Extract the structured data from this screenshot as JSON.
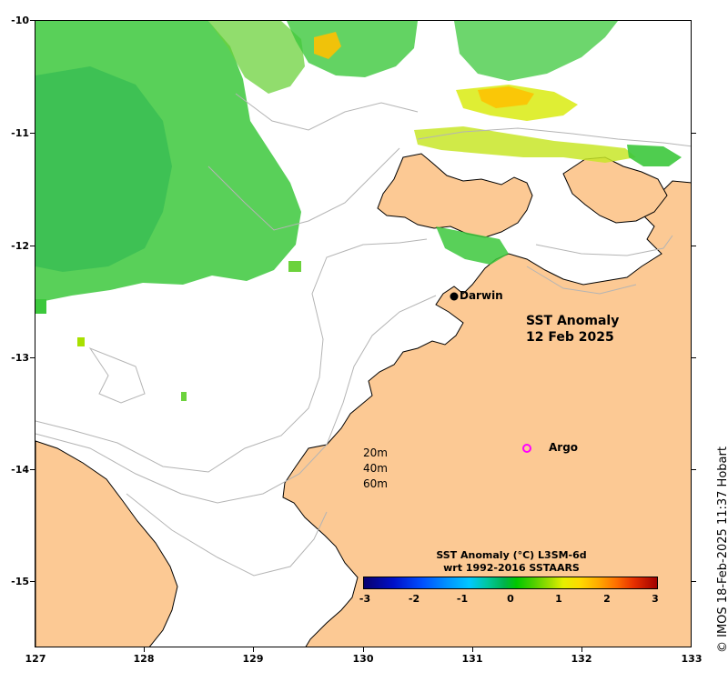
{
  "map": {
    "title_line1": "SST Anomaly",
    "title_line2": "12 Feb 2025",
    "y_ticks": [
      "-10",
      "-11",
      "-12",
      "-13",
      "-14",
      "-15"
    ],
    "x_ticks": [
      "127",
      "128",
      "129",
      "130",
      "131",
      "132",
      "133"
    ],
    "places": {
      "darwin": "Darwin",
      "argo": "Argo"
    },
    "contour_legend": [
      "20m",
      "40m",
      "60m"
    ],
    "colorbar": {
      "title_line1": "SST Anomaly (°C) L3SM-6d",
      "title_line2": "wrt 1992-2016 SSTAARS",
      "ticks": [
        "-3",
        "-2",
        "-1",
        "0",
        "1",
        "2",
        "3"
      ]
    },
    "credit": "© IMOS 18-Feb-2025 11:37 Hobart",
    "colors": {
      "land": "#fcc994",
      "water": "#ffffff",
      "contour": "#b4b4b4",
      "anomaly_green": "#3cc83c",
      "anomaly_yellow": "#dcec1e",
      "anomaly_orange": "#ffc000",
      "argo_marker": "#ff00ff"
    }
  }
}
